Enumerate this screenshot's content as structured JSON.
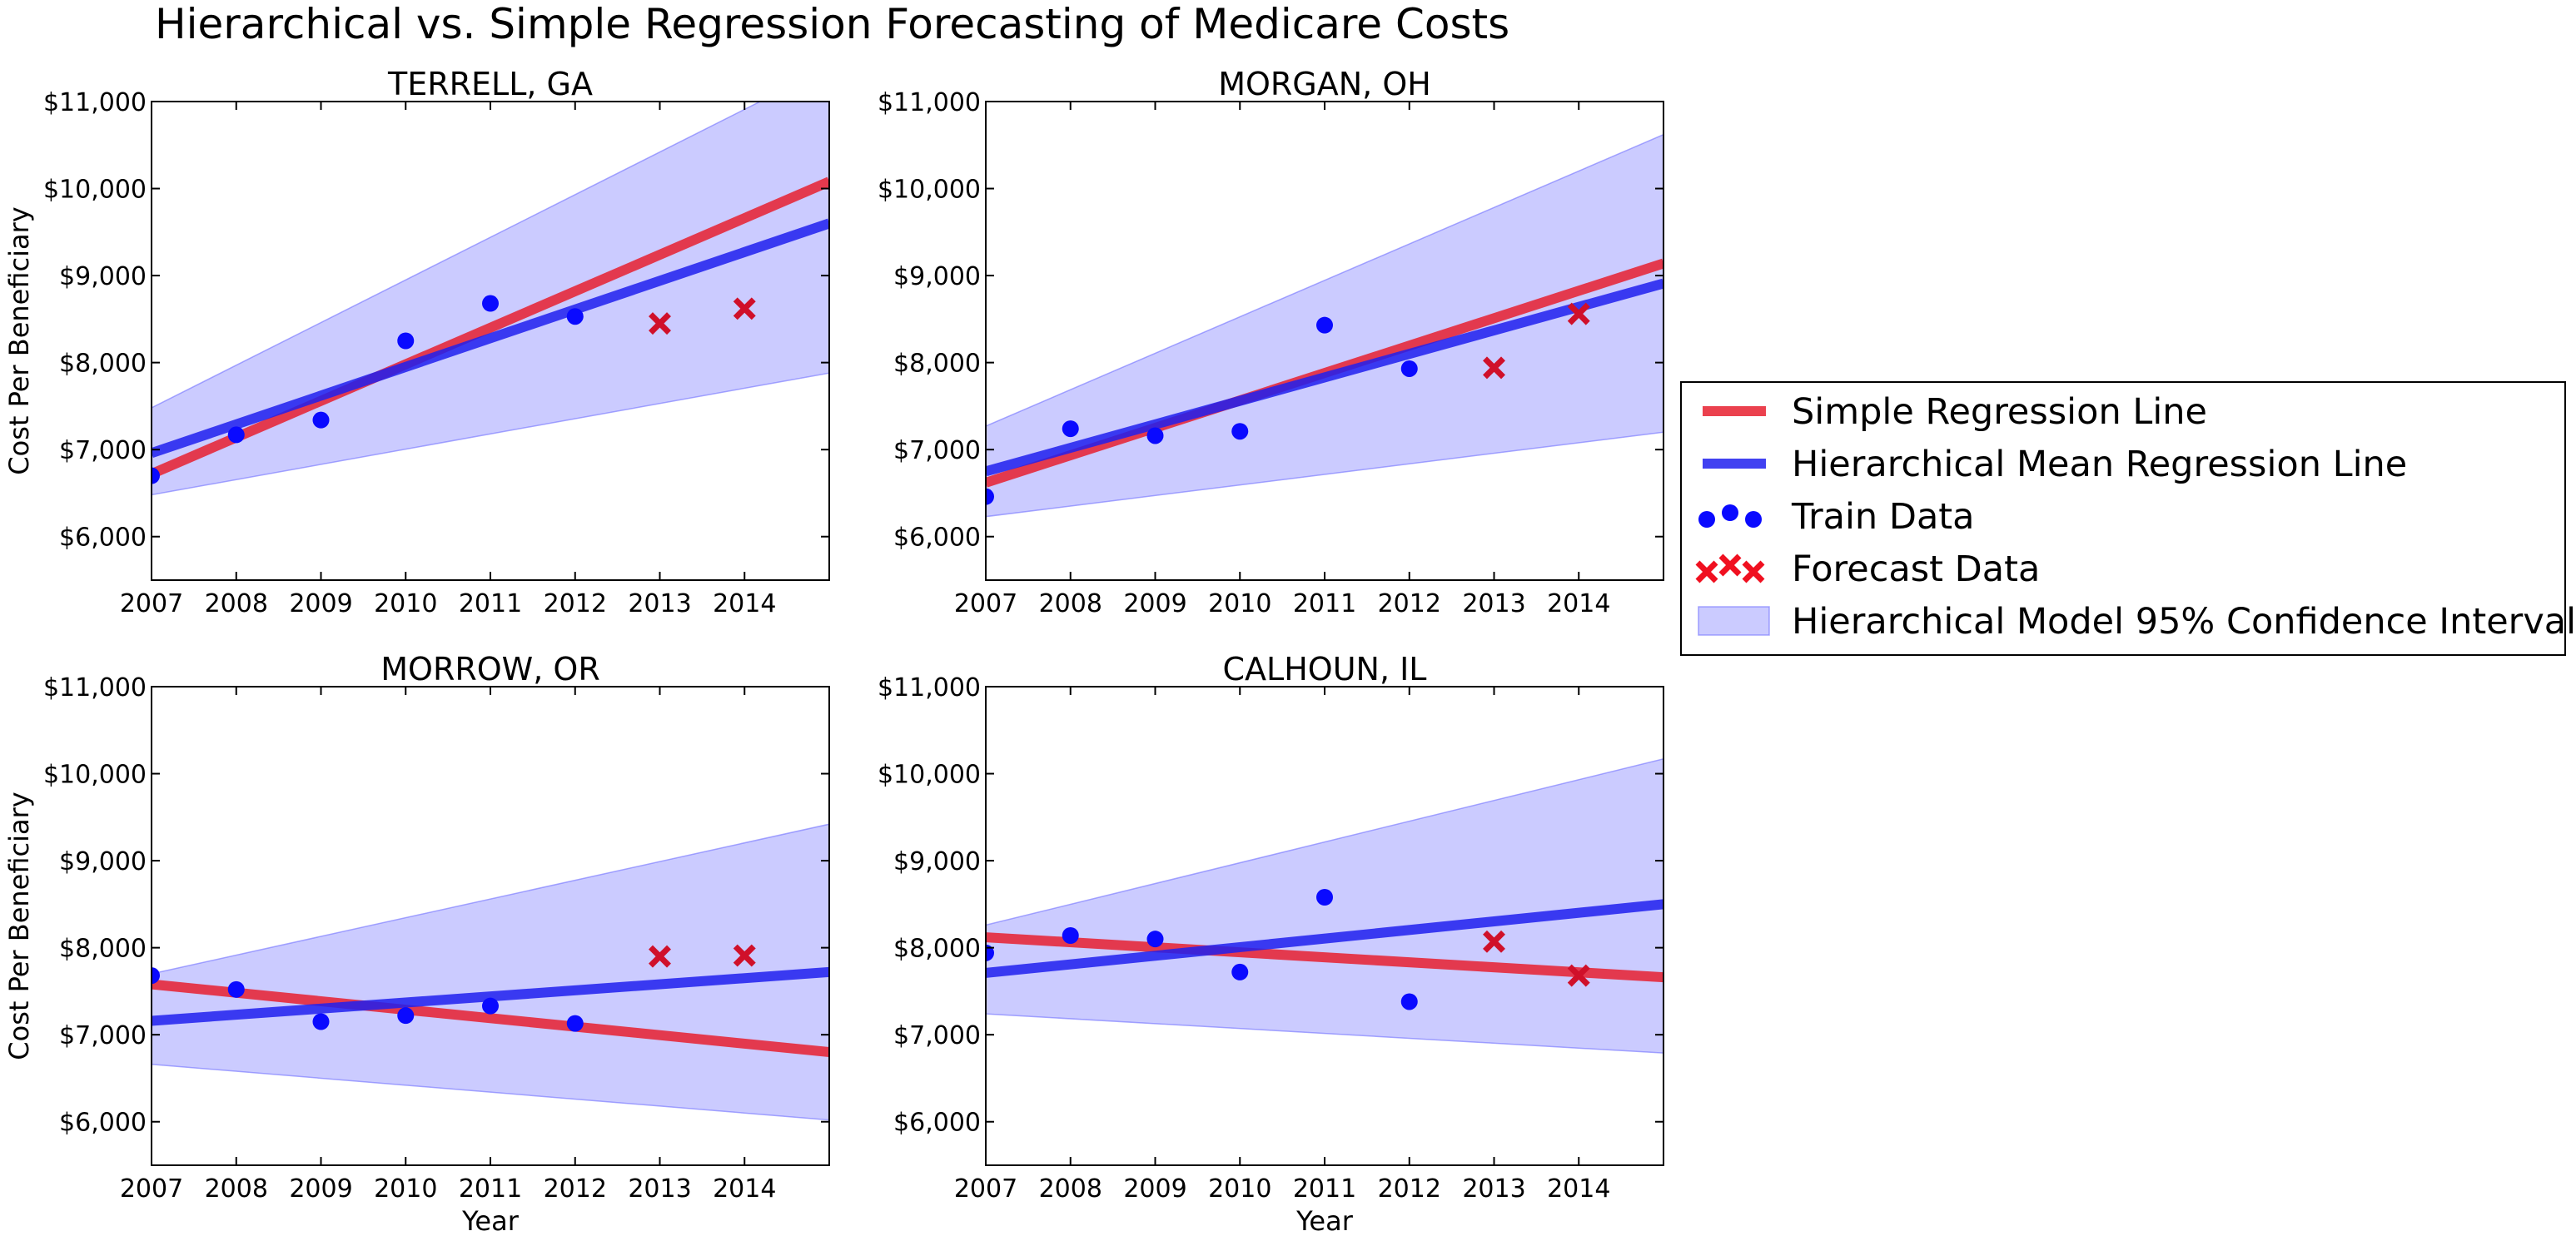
{
  "figure": {
    "title": "Hierarchical vs. Simple Regression Forecasting of Medicare Costs"
  },
  "colors": {
    "simple_line": "#e8202f",
    "hier_line": "#2020ee",
    "train_point": "#0a0aff",
    "forecast_point": "#d0102a",
    "ci_fill": "#7070ff"
  },
  "legend": {
    "items": [
      {
        "key": "simple",
        "label": "Simple Regression Line"
      },
      {
        "key": "hier",
        "label": "Hierarchical Mean Regression Line"
      },
      {
        "key": "train",
        "label": "Train Data"
      },
      {
        "key": "forecast",
        "label": "Forecast Data"
      },
      {
        "key": "ci",
        "label": "Hierarchical Model 95% Confidence Interval"
      }
    ]
  },
  "chart_data": [
    {
      "type": "line",
      "title": "TERRELL, GA",
      "xlabel": "",
      "ylabel": "Cost Per Beneficiary",
      "xlim": [
        2007,
        2015
      ],
      "ylim": [
        5500,
        11000
      ],
      "x_ticks": [
        "2007",
        "2008",
        "2009",
        "2010",
        "2011",
        "2012",
        "2013",
        "2014"
      ],
      "y_ticks": [
        "$6,000",
        "$7,000",
        "$8,000",
        "$9,000",
        "$10,000",
        "$11,000"
      ],
      "simple_line": {
        "x": [
          2007,
          2015
        ],
        "y": [
          6720,
          10080
        ]
      },
      "hier_line": {
        "x": [
          2007,
          2015
        ],
        "y": [
          6960,
          9600
        ]
      },
      "ci": {
        "x": [
          2007,
          2015
        ],
        "lower": [
          6480,
          7880
        ],
        "upper": [
          7480,
          11400
        ]
      },
      "train": {
        "x": [
          2007,
          2008,
          2009,
          2010,
          2011,
          2012
        ],
        "y": [
          6700,
          7170,
          7340,
          8250,
          8680,
          8530
        ]
      },
      "forecast": {
        "x": [
          2013,
          2014
        ],
        "y": [
          8450,
          8620
        ]
      }
    },
    {
      "type": "line",
      "title": "MORGAN, OH",
      "xlabel": "",
      "ylabel": "",
      "xlim": [
        2007,
        2015
      ],
      "ylim": [
        5500,
        11000
      ],
      "x_ticks": [
        "2007",
        "2008",
        "2009",
        "2010",
        "2011",
        "2012",
        "2013",
        "2014"
      ],
      "y_ticks": [
        "$6,000",
        "$7,000",
        "$8,000",
        "$9,000",
        "$10,000",
        "$11,000"
      ],
      "simple_line": {
        "x": [
          2007,
          2015
        ],
        "y": [
          6620,
          9140
        ]
      },
      "hier_line": {
        "x": [
          2007,
          2015
        ],
        "y": [
          6750,
          8910
        ]
      },
      "ci": {
        "x": [
          2007,
          2015
        ],
        "lower": [
          6230,
          7200
        ],
        "upper": [
          7270,
          10620
        ]
      },
      "train": {
        "x": [
          2007,
          2008,
          2009,
          2010,
          2011,
          2012
        ],
        "y": [
          6460,
          7240,
          7160,
          7210,
          8430,
          7930
        ]
      },
      "forecast": {
        "x": [
          2013,
          2014
        ],
        "y": [
          7940,
          8560
        ]
      }
    },
    {
      "type": "line",
      "title": "MORROW, OR",
      "xlabel": "Year",
      "ylabel": "Cost Per Beneficiary",
      "xlim": [
        2007,
        2015
      ],
      "ylim": [
        5500,
        11000
      ],
      "x_ticks": [
        "2007",
        "2008",
        "2009",
        "2010",
        "2011",
        "2012",
        "2013",
        "2014"
      ],
      "y_ticks": [
        "$6,000",
        "$7,000",
        "$8,000",
        "$9,000",
        "$10,000",
        "$11,000"
      ],
      "simple_line": {
        "x": [
          2007,
          2015
        ],
        "y": [
          7580,
          6800
        ]
      },
      "hier_line": {
        "x": [
          2007,
          2015
        ],
        "y": [
          7160,
          7720
        ]
      },
      "ci": {
        "x": [
          2007,
          2015
        ],
        "lower": [
          6660,
          6020
        ],
        "upper": [
          7700,
          9420
        ]
      },
      "train": {
        "x": [
          2007,
          2008,
          2009,
          2010,
          2011,
          2012
        ],
        "y": [
          7680,
          7520,
          7150,
          7220,
          7330,
          7130
        ]
      },
      "forecast": {
        "x": [
          2013,
          2014
        ],
        "y": [
          7900,
          7910
        ]
      }
    },
    {
      "type": "line",
      "title": "CALHOUN, IL",
      "xlabel": "Year",
      "ylabel": "",
      "xlim": [
        2007,
        2015
      ],
      "ylim": [
        5500,
        11000
      ],
      "x_ticks": [
        "2007",
        "2008",
        "2009",
        "2010",
        "2011",
        "2012",
        "2013",
        "2014"
      ],
      "y_ticks": [
        "$6,000",
        "$7,000",
        "$8,000",
        "$9,000",
        "$10,000",
        "$11,000"
      ],
      "simple_line": {
        "x": [
          2007,
          2015
        ],
        "y": [
          8120,
          7660
        ]
      },
      "hier_line": {
        "x": [
          2007,
          2015
        ],
        "y": [
          7710,
          8500
        ]
      },
      "ci": {
        "x": [
          2007,
          2015
        ],
        "lower": [
          7240,
          6790
        ],
        "upper": [
          8260,
          10170
        ]
      },
      "train": {
        "x": [
          2007,
          2008,
          2009,
          2010,
          2011,
          2012
        ],
        "y": [
          7940,
          8140,
          8100,
          7720,
          8580,
          7380
        ]
      },
      "forecast": {
        "x": [
          2013,
          2014
        ],
        "y": [
          8070,
          7680
        ]
      }
    }
  ]
}
